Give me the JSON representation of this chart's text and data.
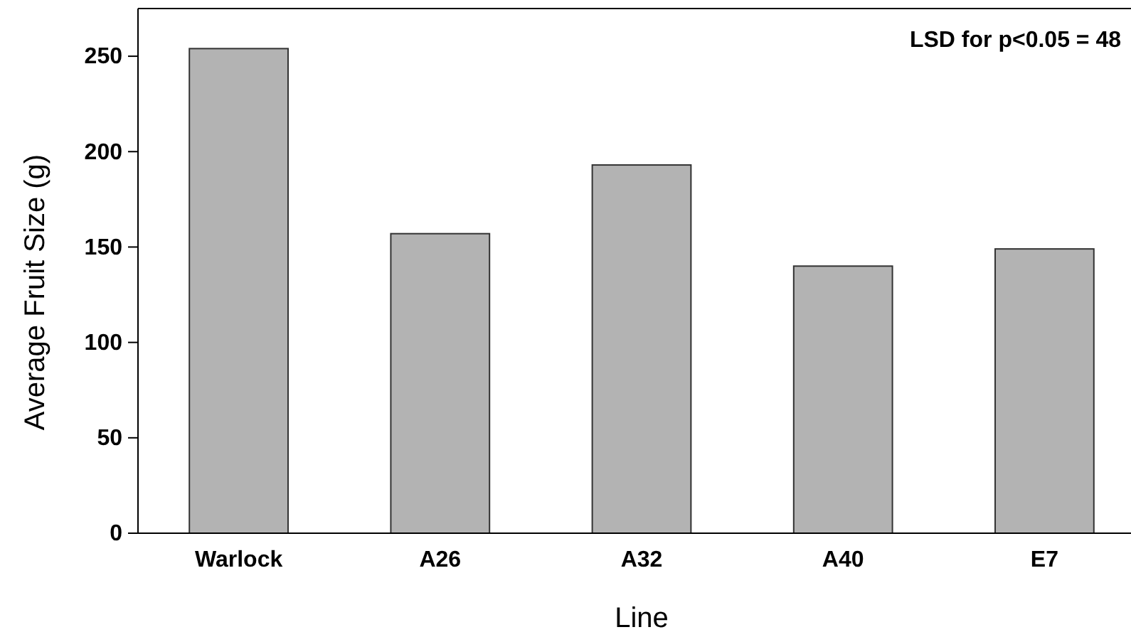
{
  "chart_data": {
    "type": "bar",
    "xlabel": "Line",
    "ylabel": "Average Fruit Size (g)",
    "categories": [
      "Warlock",
      "A26",
      "A32",
      "A40",
      "E7"
    ],
    "values": [
      254,
      157,
      193,
      140,
      149
    ],
    "color": "#b3b3b3",
    "ylim": [
      0,
      275
    ],
    "yticks": [
      0,
      50,
      100,
      150,
      200,
      250
    ],
    "annotations": [
      "LSD for p<0.05 = 48"
    ]
  }
}
